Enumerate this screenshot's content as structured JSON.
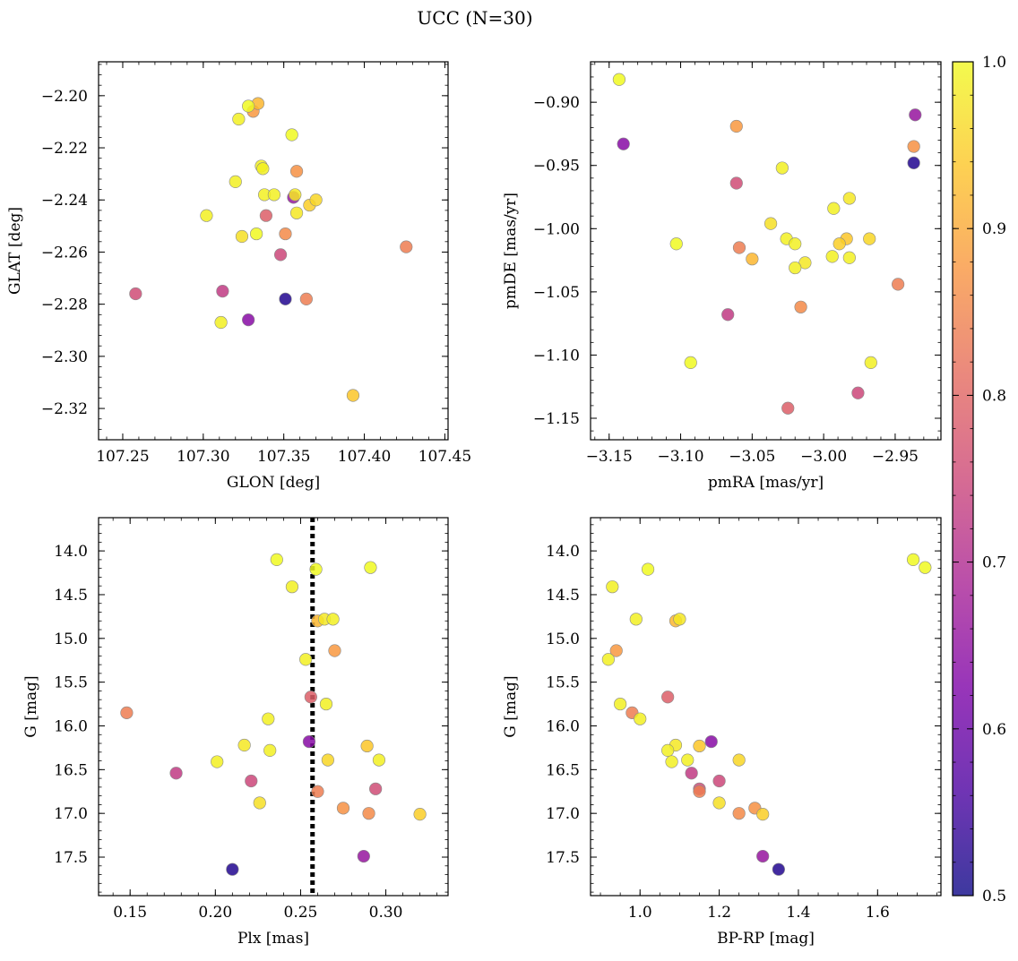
{
  "figure": {
    "title": "UCC (N=30)",
    "colormap": "plasma",
    "marker_edge_color": "#8a8a8a",
    "reference_line_color": "#000000"
  },
  "colorbar": {
    "range": [
      0.5,
      1.0
    ],
    "ticks": [
      0.5,
      0.6,
      0.7,
      0.8,
      0.9,
      1.0
    ],
    "tick_labels": [
      "0.5",
      "0.6",
      "0.7",
      "0.8",
      "0.9",
      "1.0"
    ]
  },
  "chart_data": [
    {
      "type": "scatter",
      "id": "glon-glat",
      "xlabel": "GLON [deg]",
      "ylabel": "GLAT [deg]",
      "xlim": [
        107.235,
        107.452
      ],
      "ylim": [
        -2.332,
        -2.187
      ],
      "xticks": [
        107.25,
        107.3,
        107.35,
        107.4,
        107.45
      ],
      "xtick_labels": [
        "107.25",
        "107.30",
        "107.35",
        "107.40",
        "107.45"
      ],
      "yticks": [
        -2.2,
        -2.22,
        -2.24,
        -2.26,
        -2.28,
        -2.3,
        -2.32
      ],
      "ytick_labels": [
        "−2.20",
        "−2.22",
        "−2.24",
        "−2.26",
        "−2.28",
        "−2.30",
        "−2.32"
      ],
      "minor_x_step": 0.01,
      "minor_y_step": 0.004,
      "grid": false
    },
    {
      "type": "scatter",
      "id": "pmra-pmde",
      "xlabel": "pmRA [mas/yr]",
      "ylabel": "pmDE [mas/yr]",
      "xlim": [
        -3.163,
        -2.918
      ],
      "ylim": [
        -1.167,
        -0.868
      ],
      "xticks": [
        -3.15,
        -3.1,
        -3.05,
        -3.0,
        -2.95
      ],
      "xtick_labels": [
        "−3.15",
        "−3.10",
        "−3.05",
        "−3.00",
        "−2.95"
      ],
      "yticks": [
        -0.9,
        -0.95,
        -1.0,
        -1.05,
        -1.1,
        -1.15
      ],
      "ytick_labels": [
        "−0.90",
        "−0.95",
        "−1.00",
        "−1.05",
        "−1.10",
        "−1.15"
      ],
      "minor_x_step": 0.01,
      "minor_y_step": 0.01,
      "grid": false
    },
    {
      "type": "scatter",
      "id": "plx-g",
      "xlabel": "Plx [mas]",
      "ylabel": "G [mag]",
      "xlim": [
        0.1315,
        0.3365
      ],
      "ylim": [
        17.94,
        13.62
      ],
      "reference_line": 0.257,
      "xticks": [
        0.15,
        0.2,
        0.25,
        0.3
      ],
      "xtick_labels": [
        "0.15",
        "0.20",
        "0.25",
        "0.30"
      ],
      "yticks": [
        14.0,
        14.5,
        15.0,
        15.5,
        16.0,
        16.5,
        17.0,
        17.5
      ],
      "ytick_labels": [
        "14.0",
        "14.5",
        "15.0",
        "15.5",
        "16.0",
        "16.5",
        "17.0",
        "17.5"
      ],
      "minor_x_step": 0.01,
      "minor_y_step": 0.1,
      "grid": false
    },
    {
      "type": "scatter",
      "id": "bprp-g",
      "xlabel": "BP-RP [mag]",
      "ylabel": "G [mag]",
      "xlim": [
        0.875,
        1.76
      ],
      "ylim": [
        17.94,
        13.62
      ],
      "xticks": [
        1.0,
        1.2,
        1.4,
        1.6
      ],
      "xtick_labels": [
        "1.0",
        "1.2",
        "1.4",
        "1.6"
      ],
      "yticks": [
        14.0,
        14.5,
        15.0,
        15.5,
        16.0,
        16.5,
        17.0,
        17.5
      ],
      "ytick_labels": [
        "14.0",
        "14.5",
        "15.0",
        "15.5",
        "16.0",
        "16.5",
        "17.0",
        "17.5"
      ],
      "minor_x_step": 0.05,
      "minor_y_step": 0.1,
      "grid": false
    }
  ],
  "stars": [
    {
      "glon": 107.328,
      "glat": -2.204,
      "pmra": -3.143,
      "pmde": -0.882,
      "plx": 0.291,
      "g": 14.19,
      "bprp": 1.72,
      "p": 1.0
    },
    {
      "glon": 107.333,
      "glat": -2.253,
      "pmra": -3.103,
      "pmde": -1.012,
      "plx": 0.236,
      "g": 14.1,
      "bprp": 1.69,
      "p": 1.0
    },
    {
      "glon": 107.355,
      "glat": -2.215,
      "pmra": -3.093,
      "pmde": -1.106,
      "plx": 0.259,
      "g": 14.21,
      "bprp": 1.02,
      "p": 1.0
    },
    {
      "glon": 107.322,
      "glat": -2.209,
      "pmra": -3.029,
      "pmde": -0.952,
      "plx": 0.245,
      "g": 14.41,
      "bprp": 0.93,
      "p": 0.99
    },
    {
      "glon": 107.336,
      "glat": -2.227,
      "pmra": -2.993,
      "pmde": -0.984,
      "plx": 0.269,
      "g": 14.78,
      "bprp": 0.99,
      "p": 0.99
    },
    {
      "glon": 107.357,
      "glat": -2.238,
      "pmra": -2.982,
      "pmde": -0.976,
      "plx": 0.264,
      "g": 14.78,
      "bprp": 1.1,
      "p": 0.98
    },
    {
      "glon": 107.338,
      "glat": -2.238,
      "pmra": -2.982,
      "pmde": -1.023,
      "plx": 0.253,
      "g": 15.24,
      "bprp": 0.92,
      "p": 0.99
    },
    {
      "glon": 107.302,
      "glat": -2.246,
      "pmra": -3.026,
      "pmde": -1.008,
      "plx": 0.265,
      "g": 15.75,
      "bprp": 0.95,
      "p": 0.99
    },
    {
      "glon": 107.344,
      "glat": -2.238,
      "pmra": -3.02,
      "pmde": -1.012,
      "plx": 0.231,
      "g": 15.92,
      "bprp": 1.0,
      "p": 0.99
    },
    {
      "glon": 107.358,
      "glat": -2.245,
      "pmra": -3.013,
      "pmde": -1.027,
      "plx": 0.217,
      "g": 16.22,
      "bprp": 1.09,
      "p": 0.98
    },
    {
      "glon": 107.337,
      "glat": -2.228,
      "pmra": -2.994,
      "pmde": -1.022,
      "plx": 0.232,
      "g": 16.28,
      "bprp": 1.07,
      "p": 0.99
    },
    {
      "glon": 107.32,
      "glat": -2.233,
      "pmra": -3.02,
      "pmde": -1.031,
      "plx": 0.296,
      "g": 16.39,
      "bprp": 1.12,
      "p": 0.99
    },
    {
      "glon": 107.311,
      "glat": -2.287,
      "pmra": -2.967,
      "pmde": -1.106,
      "plx": 0.201,
      "g": 16.41,
      "bprp": 1.08,
      "p": 0.99
    },
    {
      "glon": 107.324,
      "glat": -2.254,
      "pmra": -3.037,
      "pmde": -0.996,
      "plx": 0.226,
      "g": 16.88,
      "bprp": 1.2,
      "p": 0.97
    },
    {
      "glon": 107.37,
      "glat": -2.24,
      "pmra": -2.968,
      "pmde": -1.008,
      "plx": 0.266,
      "g": 16.39,
      "bprp": 1.25,
      "p": 0.96
    },
    {
      "glon": 107.366,
      "glat": -2.242,
      "pmra": -2.989,
      "pmde": -1.012,
      "plx": 0.32,
      "g": 17.01,
      "bprp": 1.31,
      "p": 0.95
    },
    {
      "glon": 107.393,
      "glat": -2.315,
      "pmra": -2.984,
      "pmde": -1.008,
      "plx": 0.289,
      "g": 16.23,
      "bprp": 1.15,
      "p": 0.94
    },
    {
      "glon": 107.334,
      "glat": -2.203,
      "pmra": -3.05,
      "pmde": -1.024,
      "plx": 0.26,
      "g": 14.8,
      "bprp": 1.09,
      "p": 0.92
    },
    {
      "glon": 107.331,
      "glat": -2.206,
      "pmra": -3.061,
      "pmde": -0.919,
      "plx": 0.27,
      "g": 15.14,
      "bprp": 0.94,
      "p": 0.88
    },
    {
      "glon": 107.358,
      "glat": -2.229,
      "pmra": -2.937,
      "pmde": -0.935,
      "plx": 0.275,
      "g": 16.94,
      "bprp": 1.29,
      "p": 0.87
    },
    {
      "glon": 107.351,
      "glat": -2.253,
      "pmra": -3.016,
      "pmde": -1.062,
      "plx": 0.29,
      "g": 17.0,
      "bprp": 1.25,
      "p": 0.86
    },
    {
      "glon": 107.426,
      "glat": -2.258,
      "pmra": -2.948,
      "pmde": -1.044,
      "plx": 0.26,
      "g": 16.75,
      "bprp": 1.15,
      "p": 0.84
    },
    {
      "glon": 107.364,
      "glat": -2.278,
      "pmra": -3.059,
      "pmde": -1.015,
      "plx": 0.148,
      "g": 15.85,
      "bprp": 0.98,
      "p": 0.84
    },
    {
      "glon": 107.339,
      "glat": -2.246,
      "pmra": -3.025,
      "pmde": -1.142,
      "plx": 0.256,
      "g": 15.67,
      "bprp": 1.07,
      "p": 0.79
    },
    {
      "glon": 107.258,
      "glat": -2.276,
      "pmra": -3.061,
      "pmde": -0.964,
      "plx": 0.294,
      "g": 16.72,
      "bprp": 1.15,
      "p": 0.76
    },
    {
      "glon": 107.348,
      "glat": -2.261,
      "pmra": -2.976,
      "pmde": -1.13,
      "plx": 0.221,
      "g": 16.63,
      "bprp": 1.2,
      "p": 0.75
    },
    {
      "glon": 107.312,
      "glat": -2.275,
      "pmra": -3.067,
      "pmde": -1.068,
      "plx": 0.177,
      "g": 16.54,
      "bprp": 1.13,
      "p": 0.73
    },
    {
      "glon": 107.356,
      "glat": -2.239,
      "pmra": -2.936,
      "pmde": -0.91,
      "plx": 0.287,
      "g": 17.49,
      "bprp": 1.31,
      "p": 0.66
    },
    {
      "glon": 107.328,
      "glat": -2.286,
      "pmra": -3.14,
      "pmde": -0.933,
      "plx": 0.255,
      "g": 16.18,
      "bprp": 1.18,
      "p": 0.64
    },
    {
      "glon": 107.351,
      "glat": -2.278,
      "pmra": -2.937,
      "pmde": -0.948,
      "plx": 0.21,
      "g": 17.64,
      "bprp": 1.35,
      "p": 0.52
    }
  ]
}
